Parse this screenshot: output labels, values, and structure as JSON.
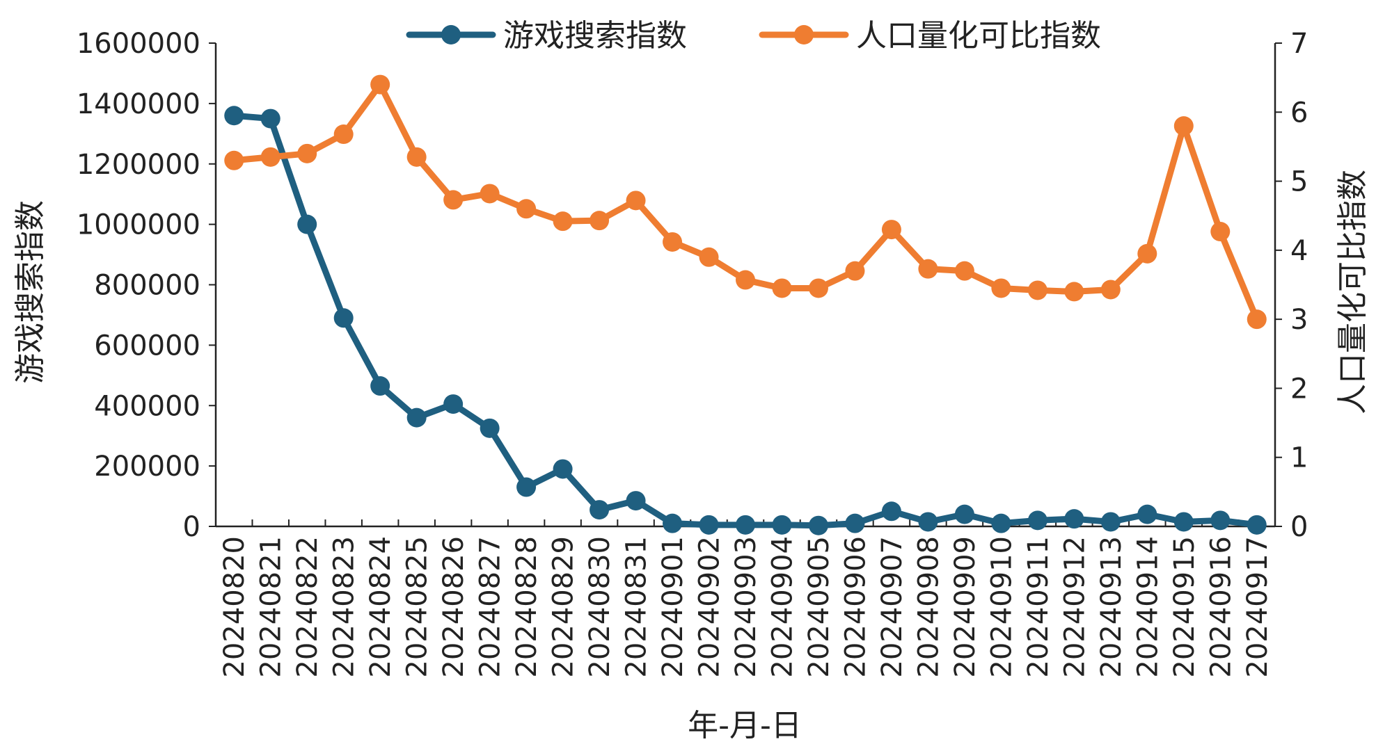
{
  "chart_data": {
    "type": "line",
    "title": "",
    "xlabel": "年-月-日",
    "ylabel_left": "游戏搜索指数",
    "ylabel_right": "人口量化可比指数",
    "ylim_left": [
      0,
      1600000
    ],
    "yticks_left": [
      "1600000",
      "1400000",
      "1200000",
      "1000000",
      "800000",
      "600000",
      "400000",
      "200000",
      "0"
    ],
    "ylim_right": [
      0,
      7
    ],
    "yticks_right": [
      "7",
      "6",
      "5",
      "4",
      "3",
      "2",
      "1",
      "0"
    ],
    "legend_position": "top-center",
    "grid": false,
    "categories": [
      "20240820",
      "20240821",
      "20240822",
      "20240823",
      "20240824",
      "20240825",
      "20240826",
      "20240827",
      "20240828",
      "20240829",
      "20240830",
      "20240831",
      "20240901",
      "20240902",
      "20240903",
      "20240904",
      "20240905",
      "20240906",
      "20240907",
      "20240908",
      "20240909",
      "20240910",
      "20240911",
      "20240912",
      "20240913",
      "20240914",
      "20240915",
      "20240916",
      "20240917"
    ],
    "series": [
      {
        "name": "游戏搜索指数",
        "axis": "left",
        "color": "#1f5f80",
        "values": [
          1360000,
          1350000,
          1000000,
          690000,
          465000,
          360000,
          405000,
          325000,
          130000,
          190000,
          55000,
          85000,
          10000,
          5000,
          5000,
          5000,
          3000,
          10000,
          50000,
          15000,
          40000,
          10000,
          20000,
          25000,
          15000,
          40000,
          15000,
          20000,
          5000
        ]
      },
      {
        "name": "人口量化可比指数",
        "axis": "right",
        "color": "#ef7d31",
        "values": [
          5.3,
          5.35,
          5.4,
          5.68,
          6.4,
          5.35,
          4.73,
          4.82,
          4.6,
          4.42,
          4.43,
          4.72,
          4.12,
          3.9,
          3.57,
          3.45,
          3.45,
          3.7,
          4.3,
          3.73,
          3.7,
          3.45,
          3.42,
          3.4,
          3.43,
          3.95,
          5.8,
          4.27,
          3.0
        ]
      }
    ]
  }
}
